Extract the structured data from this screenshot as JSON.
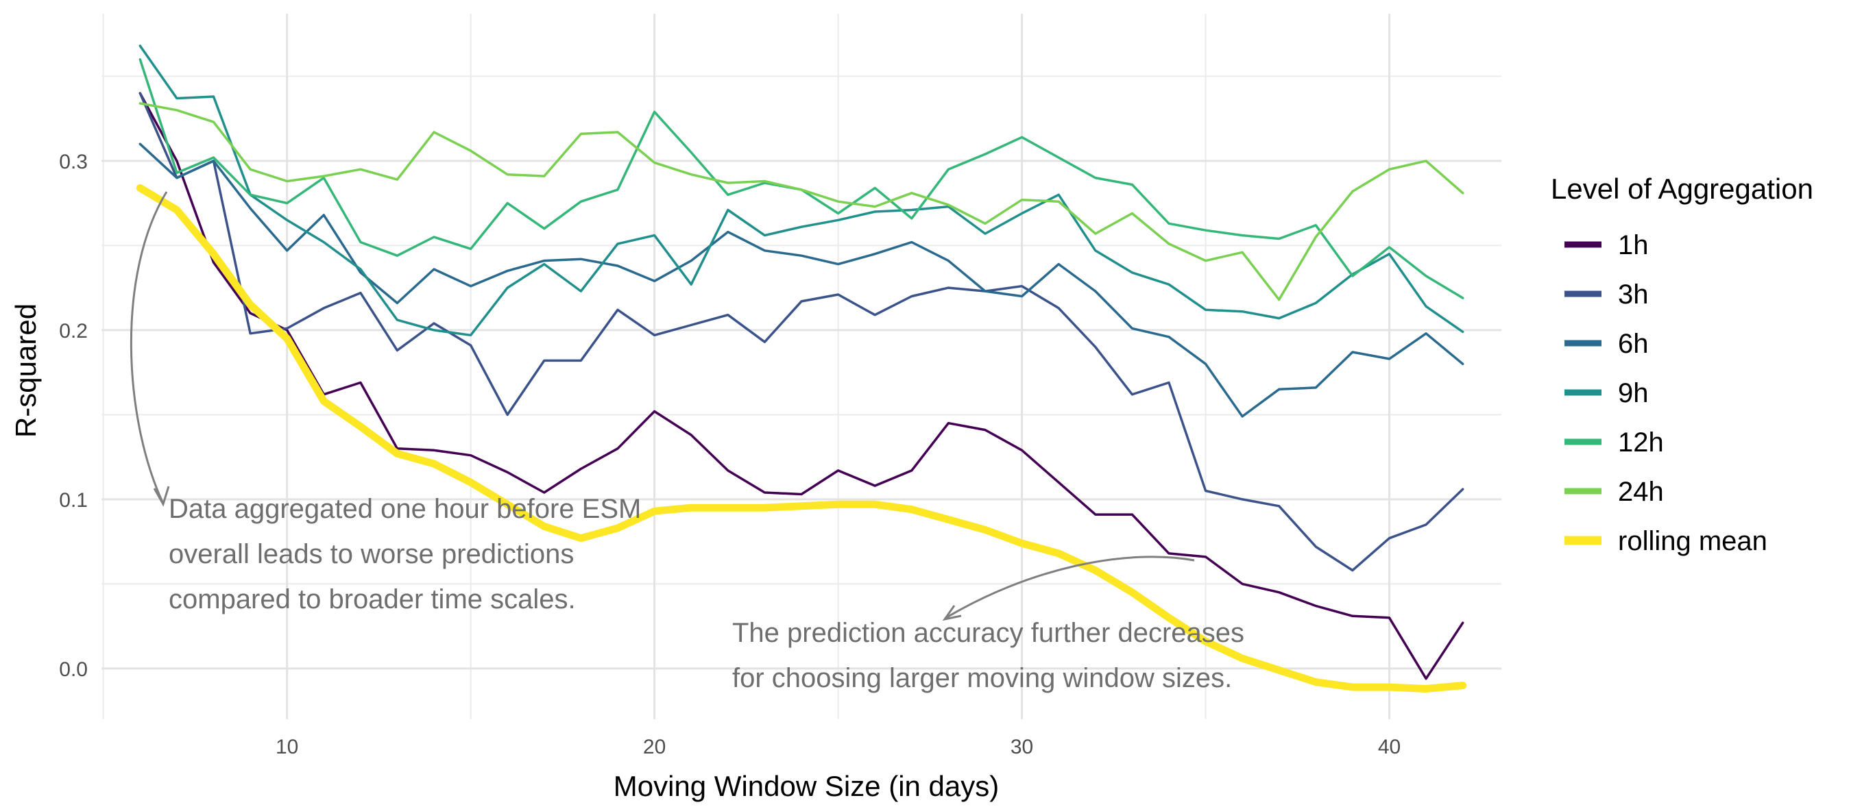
{
  "chart_data": {
    "type": "line",
    "title": "",
    "xlabel": "Moving Window Size (in days)",
    "ylabel": "R-squared",
    "xlim": [
      4.95,
      43.05
    ],
    "ylim": [
      -0.03,
      0.387
    ],
    "xticks": [
      10,
      20,
      30,
      40
    ],
    "yticks": [
      0.0,
      0.1,
      0.2,
      0.3
    ],
    "ytick_labels": [
      "0.0",
      "0.1",
      "0.2",
      "0.3"
    ],
    "grid": true,
    "legend": {
      "title": "Level of Aggregation",
      "position": "right"
    },
    "x": [
      6,
      7,
      8,
      9,
      10,
      11,
      12,
      13,
      14,
      15,
      16,
      17,
      18,
      19,
      20,
      21,
      22,
      23,
      24,
      25,
      26,
      27,
      28,
      29,
      30,
      31,
      32,
      33,
      34,
      35,
      36,
      37,
      38,
      39,
      40,
      41,
      42
    ],
    "series": [
      {
        "name": "1h",
        "color": "#440154",
        "width": 1,
        "values": [
          0.34,
          0.3,
          0.24,
          0.21,
          0.2,
          0.162,
          0.169,
          0.13,
          0.129,
          0.126,
          0.116,
          0.104,
          0.118,
          0.13,
          0.152,
          0.138,
          0.117,
          0.104,
          0.103,
          0.117,
          0.108,
          0.117,
          0.145,
          0.141,
          0.129,
          0.11,
          0.091,
          0.091,
          0.068,
          0.066,
          0.05,
          0.045,
          0.037,
          0.031,
          0.03,
          -0.006,
          0.027
        ]
      },
      {
        "name": "3h",
        "color": "#3b528b",
        "width": 1,
        "values": [
          0.34,
          0.29,
          0.3,
          0.198,
          0.201,
          0.213,
          0.222,
          0.188,
          0.204,
          0.191,
          0.15,
          0.182,
          0.182,
          0.212,
          0.197,
          0.203,
          0.209,
          0.193,
          0.217,
          0.221,
          0.209,
          0.22,
          0.225,
          0.223,
          0.226,
          0.213,
          0.19,
          0.162,
          0.169,
          0.105,
          0.1,
          0.096,
          0.072,
          0.058,
          0.077,
          0.085,
          0.106
        ]
      },
      {
        "name": "6h",
        "color": "#2a6a8f",
        "width": 1,
        "values": [
          0.31,
          0.29,
          0.3,
          0.272,
          0.247,
          0.268,
          0.234,
          0.216,
          0.236,
          0.226,
          0.235,
          0.241,
          0.242,
          0.238,
          0.229,
          0.241,
          0.258,
          0.247,
          0.244,
          0.239,
          0.245,
          0.252,
          0.241,
          0.223,
          0.22,
          0.239,
          0.223,
          0.201,
          0.196,
          0.18,
          0.149,
          0.165,
          0.166,
          0.187,
          0.183,
          0.198,
          0.18
        ]
      },
      {
        "name": "9h",
        "color": "#21908d",
        "width": 1,
        "values": [
          0.368,
          0.337,
          0.338,
          0.28,
          0.265,
          0.252,
          0.236,
          0.206,
          0.2,
          0.197,
          0.225,
          0.239,
          0.223,
          0.251,
          0.256,
          0.227,
          0.271,
          0.256,
          0.261,
          0.265,
          0.27,
          0.271,
          0.273,
          0.257,
          0.269,
          0.28,
          0.247,
          0.234,
          0.227,
          0.212,
          0.211,
          0.207,
          0.216,
          0.233,
          0.245,
          0.214,
          0.199
        ]
      },
      {
        "name": "12h",
        "color": "#35b779",
        "width": 1,
        "values": [
          0.36,
          0.293,
          0.302,
          0.28,
          0.275,
          0.29,
          0.252,
          0.244,
          0.255,
          0.248,
          0.275,
          0.26,
          0.276,
          0.283,
          0.329,
          0.305,
          0.28,
          0.287,
          0.283,
          0.269,
          0.284,
          0.266,
          0.295,
          0.304,
          0.314,
          0.302,
          0.29,
          0.286,
          0.263,
          0.259,
          0.256,
          0.254,
          0.262,
          0.232,
          0.249,
          0.232,
          0.219
        ]
      },
      {
        "name": "24h",
        "color": "#7ad151",
        "width": 1,
        "values": [
          0.334,
          0.33,
          0.323,
          0.295,
          0.288,
          0.291,
          0.295,
          0.289,
          0.317,
          0.306,
          0.292,
          0.291,
          0.316,
          0.317,
          0.299,
          0.292,
          0.287,
          0.288,
          0.283,
          0.276,
          0.273,
          0.281,
          0.274,
          0.263,
          0.277,
          0.276,
          0.257,
          0.269,
          0.251,
          0.241,
          0.246,
          0.218,
          0.255,
          0.282,
          0.295,
          0.3,
          0.281
        ]
      },
      {
        "name": "rolling mean",
        "color": "#fde725",
        "width": 3,
        "values": [
          0.284,
          0.271,
          0.245,
          0.215,
          0.195,
          0.158,
          0.143,
          0.127,
          0.121,
          0.11,
          0.097,
          0.084,
          0.077,
          0.083,
          0.093,
          0.095,
          0.095,
          0.095,
          0.096,
          0.097,
          0.097,
          0.094,
          0.088,
          0.082,
          0.074,
          0.068,
          0.058,
          0.045,
          0.03,
          0.016,
          0.006,
          -0.001,
          -0.008,
          -0.011,
          -0.011,
          -0.012,
          -0.01
        ]
      }
    ],
    "annotations": [
      {
        "lines": [
          "Data aggregated one hour before ESM",
          "overall leads to worse predictions",
          "compared to broader time scales."
        ]
      },
      {
        "lines": [
          "The prediction accuracy further decreases",
          "for choosing larger moving window sizes."
        ]
      }
    ]
  }
}
